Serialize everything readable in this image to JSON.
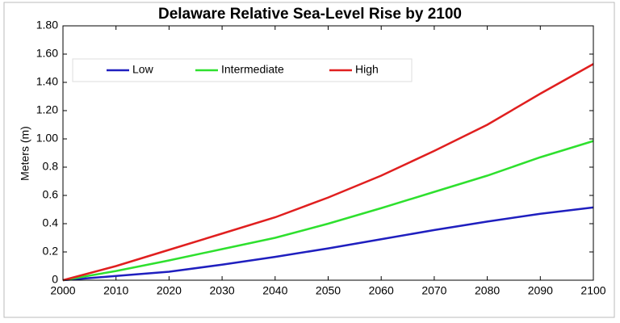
{
  "chart_data": {
    "type": "line",
    "title": "Delaware Relative Sea-Level Rise by 2100",
    "y_label": "Meters (m)",
    "x": [
      2000,
      2010,
      2020,
      2030,
      2040,
      2050,
      2060,
      2070,
      2080,
      2090,
      2100
    ],
    "series": [
      {
        "name": "Low",
        "color": "#1f1fbf",
        "values": [
          0,
          0.03,
          0.06,
          0.11,
          0.165,
          0.225,
          0.29,
          0.355,
          0.415,
          0.47,
          0.515
        ]
      },
      {
        "name": "Intermediate",
        "color": "#2ee02e",
        "values": [
          0,
          0.065,
          0.14,
          0.22,
          0.3,
          0.4,
          0.51,
          0.625,
          0.74,
          0.87,
          0.985
        ]
      },
      {
        "name": "High",
        "color": "#e01f1f",
        "values": [
          0,
          0.1,
          0.215,
          0.33,
          0.445,
          0.585,
          0.74,
          0.915,
          1.1,
          1.32,
          1.53
        ]
      }
    ],
    "xlim": [
      2000,
      2100
    ],
    "xticks": [
      2000,
      2010,
      2020,
      2030,
      2040,
      2050,
      2060,
      2070,
      2080,
      2090,
      2100
    ],
    "ylim": [
      0,
      1.8
    ],
    "yticks": [
      0,
      0.2,
      0.4,
      0.6,
      0.8,
      {
        "value": 1,
        "label": "1.00"
      },
      {
        "value": 1.2,
        "label": "1.20"
      },
      {
        "value": 1.4,
        "label": "1.40"
      },
      {
        "value": 1.6,
        "label": "1.60"
      },
      {
        "value": 1.8,
        "label": "1.80"
      }
    ],
    "grid": false,
    "legend": "upper left"
  }
}
